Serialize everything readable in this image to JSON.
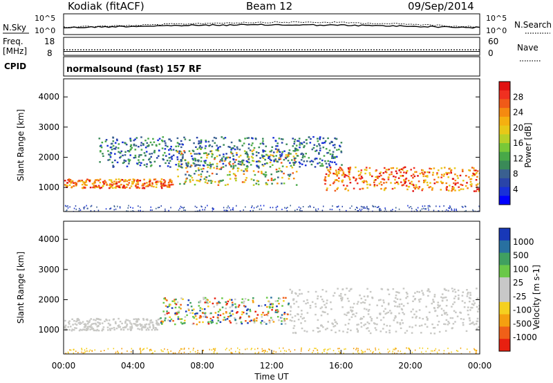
{
  "header": {
    "station": "Kodiak (fitACF)",
    "beam": "Beam 12",
    "date": "09/Sep/2014"
  },
  "noise_panel": {
    "left_label": "N.Sky",
    "right_label": "N.Search",
    "left_ticks": [
      "10^5",
      "10^0"
    ],
    "right_ticks": [
      "10^5",
      "10^0"
    ]
  },
  "freq_panel": {
    "left_label_1": "Freq.",
    "left_label_2": "[MHz]",
    "right_label": "Nave",
    "left_ticks": [
      "18",
      "8"
    ],
    "right_ticks": [
      "60",
      "0"
    ]
  },
  "cpid_panel": {
    "label": "CPID",
    "program": "normalsound (fast) 157 RF"
  },
  "chart_data": [
    {
      "type": "heatmap",
      "name": "power",
      "ylabel": "Slant Range [km]",
      "ylim": [
        200,
        4600
      ],
      "yticks": [
        1000,
        2000,
        3000,
        4000
      ],
      "xticks": [
        "00:00",
        "04:00",
        "08:00",
        "12:00",
        "16:00",
        "20:00",
        "00:00"
      ],
      "colorbar": {
        "label": "Power [dB]",
        "ticks": [
          "28",
          "24",
          "20",
          "16",
          "12",
          "8",
          "4"
        ],
        "colors": [
          "#e01010",
          "#f03020",
          "#f05a18",
          "#f58a10",
          "#f5b010",
          "#e8c818",
          "#b8d028",
          "#78c838",
          "#48a848",
          "#3a8a58",
          "#3a6090",
          "#2a44a8",
          "#1830d8",
          "#0000ff"
        ]
      },
      "bands": [
        {
          "x0": 0.0,
          "x1": 6.3,
          "r0": 1000,
          "r1": 1300,
          "level": "high"
        },
        {
          "x0": 6.5,
          "x1": 13.5,
          "r0": 1100,
          "r1": 2300,
          "level": "mid"
        },
        {
          "x0": 15.0,
          "x1": 24.0,
          "r0": 900,
          "r1": 1700,
          "level": "high"
        },
        {
          "x0": 2.0,
          "x1": 16.0,
          "r0": 1700,
          "r1": 2700,
          "level": "low"
        }
      ]
    },
    {
      "type": "heatmap",
      "name": "velocity",
      "ylabel": "Slant Range [km]",
      "xlabel": "Time UT",
      "ylim": [
        200,
        4600
      ],
      "yticks": [
        1000,
        2000,
        3000,
        4000
      ],
      "xticks": [
        "00:00",
        "04:00",
        "08:00",
        "12:00",
        "16:00",
        "20:00",
        "00:00"
      ],
      "colorbar": {
        "label": "Velocity [m s-1]",
        "ticks": [
          "1000",
          "500",
          "100",
          "25",
          "-25",
          "-100",
          "-500",
          "-1000"
        ],
        "colors": [
          "#1838b8",
          "#2870a0",
          "#40a060",
          "#6ac848",
          "#c8c8c8",
          "#c8c8c8",
          "#f5d020",
          "#f5a010",
          "#f06018",
          "#e82010"
        ]
      },
      "ground_scatter_color": "#c8c8c4",
      "bands": [
        {
          "x0": 0.0,
          "x1": 5.5,
          "r0": 1000,
          "r1": 1400,
          "level": "ground"
        },
        {
          "x0": 5.5,
          "x1": 13.0,
          "r0": 1200,
          "r1": 2100,
          "level": "mixed"
        },
        {
          "x0": 13.0,
          "x1": 24.0,
          "r0": 900,
          "r1": 2400,
          "level": "ground"
        }
      ]
    }
  ]
}
